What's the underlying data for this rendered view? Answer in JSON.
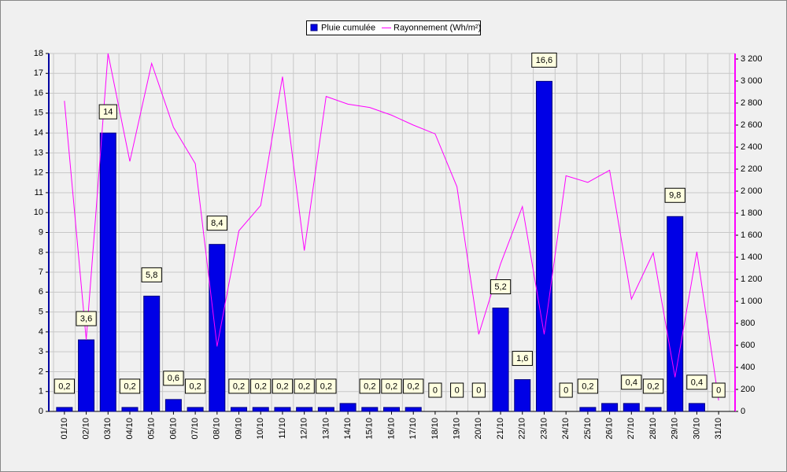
{
  "chart_data": {
    "type": "bar",
    "categories": [
      "01/10",
      "02/10",
      "03/10",
      "04/10",
      "05/10",
      "06/10",
      "07/10",
      "08/10",
      "09/10",
      "10/10",
      "11/10",
      "12/10",
      "13/10",
      "14/10",
      "15/10",
      "16/10",
      "17/10",
      "18/10",
      "19/10",
      "20/10",
      "21/10",
      "22/10",
      "23/10",
      "24/10",
      "25/10",
      "26/10",
      "27/10",
      "28/10",
      "29/10",
      "30/10",
      "31/10"
    ],
    "series": [
      {
        "name": "Pluie cumulée",
        "type": "bar",
        "color": "#0000e6",
        "values": [
          0.2,
          3.6,
          14,
          0.2,
          5.8,
          0.6,
          0.2,
          8.4,
          0.2,
          0.2,
          0.2,
          0.2,
          0.2,
          0.4,
          0.2,
          0.2,
          0.2,
          0,
          0,
          0,
          5.2,
          1.6,
          16.6,
          0,
          0.2,
          0.4,
          0.4,
          0.2,
          9.8,
          0.4,
          0
        ],
        "value_labels": [
          "0,2",
          "3,6",
          "14",
          "0,2",
          "5,8",
          "0,6",
          "0,2",
          "8,4",
          "0,2",
          "0,2",
          "0,2",
          "0,2",
          "0,2",
          null,
          "0,2",
          "0,2",
          "0,2",
          "0",
          "0",
          "0",
          "5,2",
          "1,6",
          "16,6",
          "0",
          "0,2",
          null,
          "0,4",
          "0,2",
          "9,8",
          "0,4",
          "0"
        ]
      },
      {
        "name": "Rayonnement (Wh/m²)",
        "type": "line",
        "axis": "y2",
        "color": "#ff00ff",
        "values": [
          2820,
          650,
          3250,
          2270,
          3160,
          2580,
          2250,
          590,
          1640,
          1870,
          3040,
          1460,
          2860,
          2790,
          2760,
          2690,
          2600,
          2520,
          2040,
          700,
          1340,
          1860,
          700,
          2140,
          2080,
          2190,
          1020,
          1440,
          310,
          1450,
          100
        ]
      }
    ],
    "ylim": [
      0,
      18
    ],
    "yticks": [
      0,
      1,
      2,
      3,
      4,
      5,
      6,
      7,
      8,
      9,
      10,
      11,
      12,
      13,
      14,
      15,
      16,
      17,
      18
    ],
    "y2lim": [
      0,
      3250
    ],
    "y2ticks": [
      0,
      200,
      400,
      600,
      800,
      {
        "value": 1000,
        "label": "1 000"
      },
      {
        "value": 1200,
        "label": "1 200"
      },
      {
        "value": 1400,
        "label": "1 400"
      },
      {
        "value": 1600,
        "label": "1 600"
      },
      {
        "value": 1800,
        "label": "1 800"
      },
      {
        "value": 2000,
        "label": "2 000"
      },
      {
        "value": 2200,
        "label": "2 200"
      },
      {
        "value": 2400,
        "label": "2 400"
      },
      {
        "value": 2600,
        "label": "2 600"
      },
      {
        "value": 2800,
        "label": "2 800"
      },
      {
        "value": 3000,
        "label": "3 000"
      },
      {
        "value": 3200,
        "label": "3 200"
      }
    ],
    "grid": true,
    "legend": "top"
  }
}
